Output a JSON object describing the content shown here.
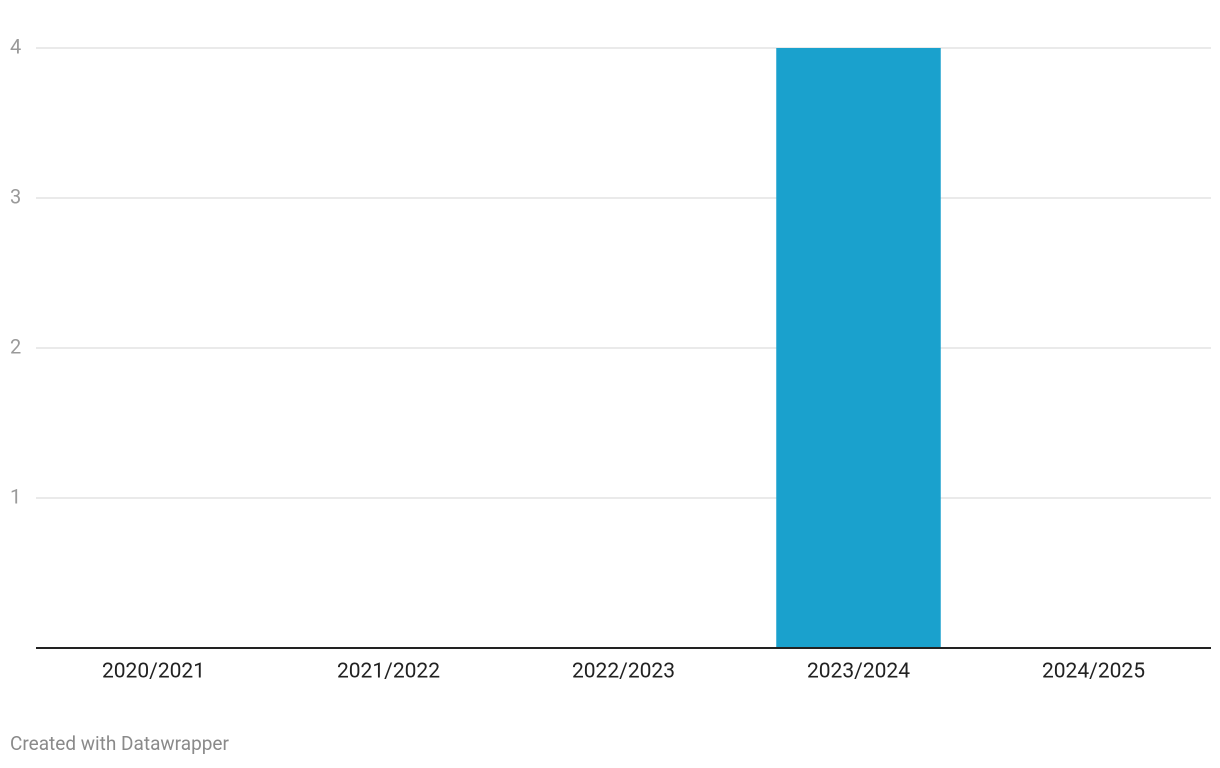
{
  "chart_data": {
    "type": "bar",
    "categories": [
      "2020/2021",
      "2021/2022",
      "2022/2023",
      "2023/2024",
      "2024/2025"
    ],
    "values": [
      0,
      0,
      0,
      4,
      0
    ],
    "color": "#1aa1cd",
    "ylim": [
      0,
      4
    ],
    "yticks": [
      1,
      2,
      3,
      4
    ],
    "grid": true,
    "credit": "Created with Datawrapper"
  }
}
